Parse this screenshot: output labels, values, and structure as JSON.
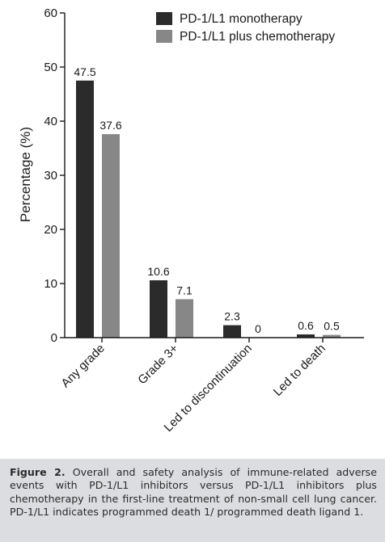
{
  "chart_data": {
    "type": "bar",
    "categories": [
      "Any grade",
      "Grade 3+",
      "Led to discontinuation",
      "Led to death"
    ],
    "series": [
      {
        "name": "PD-1/L1 monotherapy",
        "values": [
          47.5,
          10.6,
          2.3,
          0.6
        ],
        "labels": [
          "47.5",
          "10.6",
          "2.3",
          "0.6"
        ],
        "color": "#2b2b2b"
      },
      {
        "name": "PD-1/L1 plus chemotherapy",
        "values": [
          37.6,
          7.1,
          0,
          0.5
        ],
        "labels": [
          "37.6",
          "7.1",
          "0",
          "0.5"
        ],
        "color": "#878787"
      }
    ],
    "ylabel": "Percentage (%)",
    "xlabel": "",
    "ylim": [
      0,
      60
    ],
    "yticks": [
      "0",
      "10",
      "20",
      "30",
      "40",
      "50",
      "60"
    ],
    "legend_position": "top-right",
    "grid": false
  },
  "caption": {
    "label": "Figure 2.",
    "text": " Overall and safety analysis of immune-related adverse events with PD-1/L1 inhibitors versus PD-1/L1 inhibitors plus chemotherapy in the first-line treatment of non-small cell lung cancer. PD-1/L1 indicates programmed death 1/ programmed death ligand 1."
  }
}
